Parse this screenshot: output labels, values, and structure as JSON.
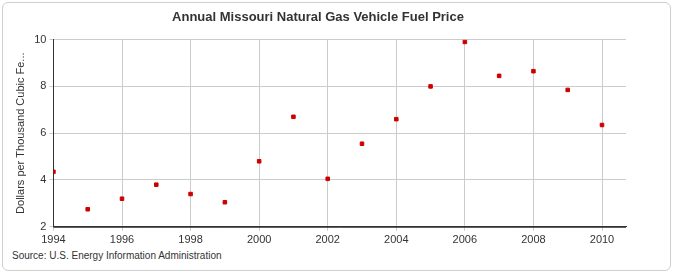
{
  "chart_data": {
    "type": "scatter",
    "title": "Annual Missouri Natural Gas Vehicle Fuel Price",
    "y_label": "Dollars per Thousand Cubic Fe...",
    "source": "Source: U.S. Energy Information Administration",
    "x": [
      1994,
      1995,
      1996,
      1997,
      1998,
      1999,
      2000,
      2001,
      2002,
      2003,
      2004,
      2005,
      2006,
      2007,
      2008,
      2009,
      2010
    ],
    "values": [
      4.35,
      2.75,
      3.2,
      3.8,
      3.4,
      3.05,
      4.8,
      6.7,
      4.05,
      5.55,
      6.6,
      8.0,
      9.9,
      8.45,
      8.65,
      7.85,
      6.35
    ],
    "color": "#cc0000",
    "marker": "square",
    "xlim": [
      1994,
      2010.7
    ],
    "xticks": [
      1994,
      1996,
      1998,
      2000,
      2002,
      2004,
      2006,
      2008,
      2010
    ],
    "ylim": [
      2,
      10
    ],
    "yticks": [
      2,
      4,
      6,
      8,
      10
    ],
    "grid": true
  }
}
